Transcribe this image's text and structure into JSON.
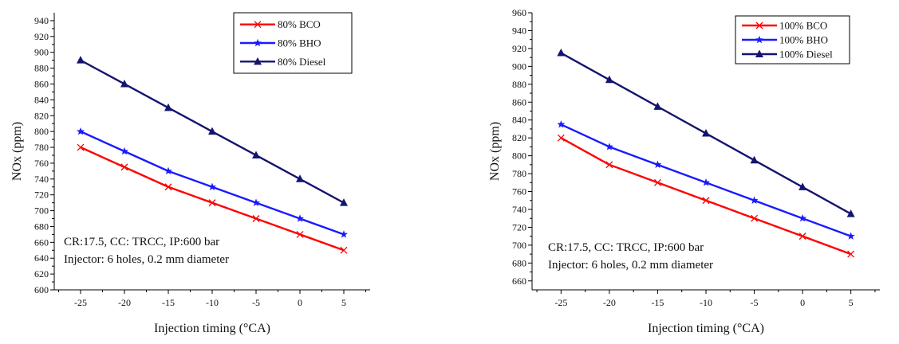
{
  "chart_data": [
    {
      "type": "line",
      "xlabel": "Injection timing (°CA)",
      "ylabel": "NOx (ppm)",
      "x": [
        -25,
        -20,
        -15,
        -10,
        -5,
        0,
        5
      ],
      "xlim": [
        -28,
        8
      ],
      "ylim": [
        600,
        950
      ],
      "yticks": [
        600,
        620,
        640,
        660,
        680,
        700,
        720,
        740,
        760,
        780,
        800,
        820,
        840,
        860,
        880,
        900,
        920,
        940
      ],
      "legend_position": "top-right",
      "series": [
        {
          "name": "80% BCO",
          "color": "#ff0000",
          "marker": "x",
          "values": [
            780,
            755,
            730,
            710,
            690,
            670,
            650
          ]
        },
        {
          "name": "80% BHO",
          "color": "#1a1aff",
          "marker": "star",
          "values": [
            800,
            775,
            750,
            730,
            710,
            690,
            670
          ]
        },
        {
          "name": "80% Diesel",
          "color": "#141470",
          "marker": "triangle",
          "values": [
            890,
            860,
            830,
            800,
            770,
            740,
            710
          ]
        }
      ],
      "annotations": [
        "CR:17.5, CC: TRCC, IP:600 bar",
        "Injector: 6 holes, 0.2 mm diameter"
      ]
    },
    {
      "type": "line",
      "xlabel": "Injection timing (°CA)",
      "ylabel": "NOx (ppm)",
      "x": [
        -25,
        -20,
        -15,
        -10,
        -5,
        0,
        5
      ],
      "xlim": [
        -28,
        8
      ],
      "ylim": [
        650,
        960
      ],
      "yticks": [
        660,
        680,
        700,
        720,
        740,
        760,
        780,
        800,
        820,
        840,
        860,
        880,
        900,
        920,
        940,
        960
      ],
      "legend_position": "top-right",
      "series": [
        {
          "name": "100% BCO",
          "color": "#ff0000",
          "marker": "x",
          "values": [
            820,
            790,
            770,
            750,
            730,
            710,
            690
          ]
        },
        {
          "name": "100% BHO",
          "color": "#1a1aff",
          "marker": "star",
          "values": [
            835,
            810,
            790,
            770,
            750,
            730,
            710
          ]
        },
        {
          "name": "100% Diesel",
          "color": "#141470",
          "marker": "triangle",
          "values": [
            915,
            885,
            855,
            825,
            795,
            765,
            735
          ]
        }
      ],
      "annotations": [
        "CR:17.5, CC: TRCC, IP:600 bar",
        "Injector: 6 holes, 0.2 mm diameter"
      ]
    }
  ]
}
